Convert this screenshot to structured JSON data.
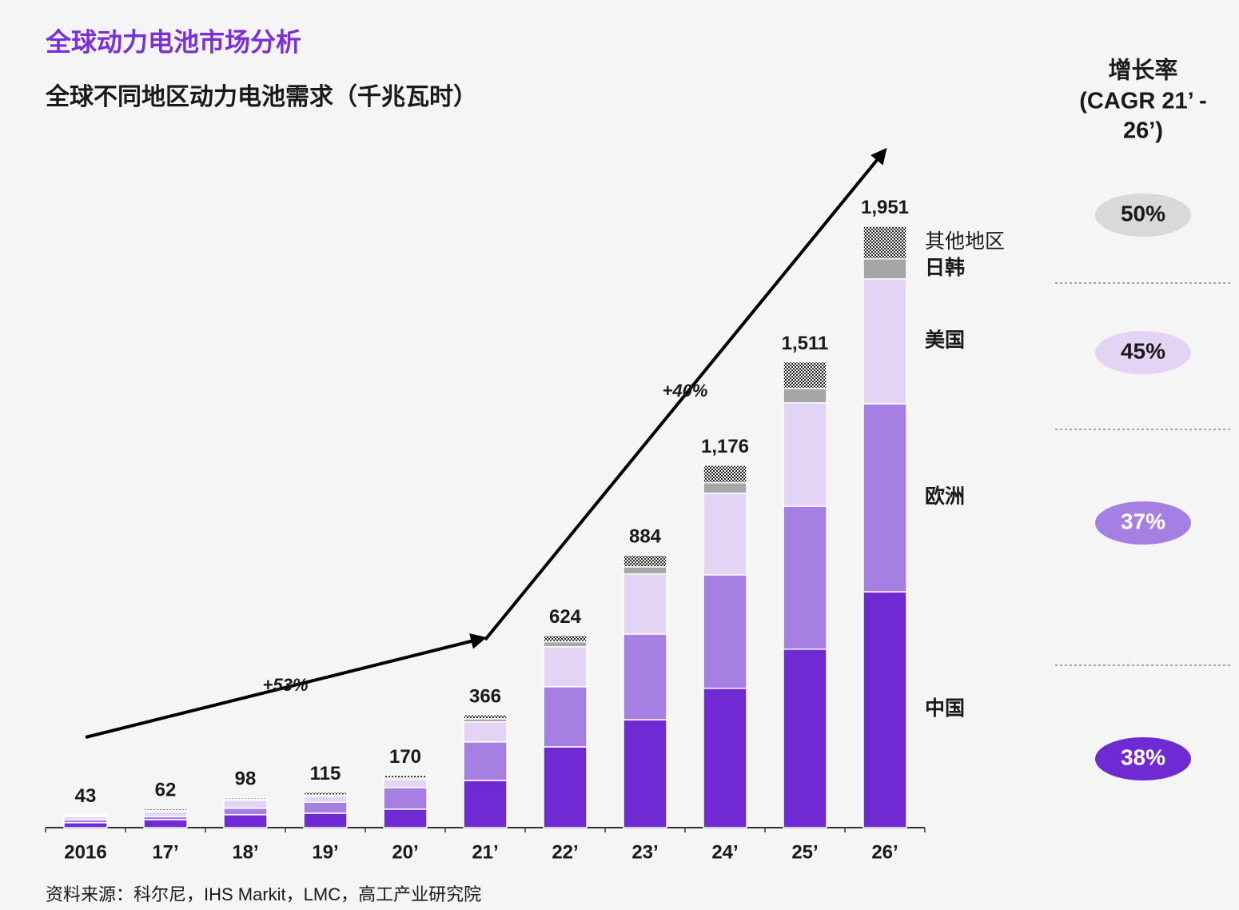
{
  "chart_data": {
    "type": "stacked_bar",
    "title": "全球动力电池市场分析",
    "subtitle": "全球不同地区动力电池需求（千兆瓦时）",
    "categories": [
      "2016",
      "17’",
      "18’",
      "19’",
      "20’",
      "21’",
      "22’",
      "23’",
      "24’",
      "25’",
      "26’"
    ],
    "series": [
      {
        "name": "中国",
        "color": "#6f2ad3",
        "values": [
          16,
          26,
          42,
          47,
          60,
          153,
          262,
          350,
          452,
          579,
          765
        ]
      },
      {
        "name": "欧洲",
        "color": "#a67fe3",
        "values": [
          10,
          10,
          21,
          36,
          70,
          125,
          195,
          278,
          368,
          464,
          610
        ]
      },
      {
        "name": "美国",
        "color": "#e3d4f5",
        "values": [
          10,
          16,
          26,
          18,
          26,
          65,
          130,
          195,
          265,
          335,
          405
        ]
      },
      {
        "name": "日韩",
        "color": "#a6a6a6",
        "values": [
          3,
          4,
          4,
          5,
          5,
          10,
          16,
          23,
          34,
          47,
          65
        ]
      },
      {
        "name": "其他地区",
        "color": "hatch",
        "values": [
          4,
          6,
          5,
          9,
          9,
          13,
          21,
          38,
          57,
          86,
          106
        ]
      }
    ],
    "totals": {
      "values": [
        43,
        62,
        98,
        115,
        170,
        366,
        624,
        884,
        1176,
        1511,
        1951
      ],
      "value_labels": [
        "43",
        "62",
        "98",
        "115",
        "170",
        "366",
        "624",
        "884",
        "1,176",
        "1,511",
        "1,951"
      ]
    },
    "ylim": [
      0,
      2000
    ],
    "annotations": [
      "+53%",
      "+40%"
    ],
    "cagr": {
      "title": [
        "增长率",
        "(CAGR 21’ -",
        "26’)"
      ],
      "values": [
        50,
        45,
        37,
        38
      ],
      "value_labels": [
        "50%",
        "45%",
        "37%",
        "38%"
      ],
      "colors": [
        "#d9d9d9",
        "#e3d4f5",
        "#a67fe3",
        "#6f2ad3"
      ]
    },
    "source": "资料来源：科尔尼，IHS Markit，LMC，高工产业研究院"
  }
}
